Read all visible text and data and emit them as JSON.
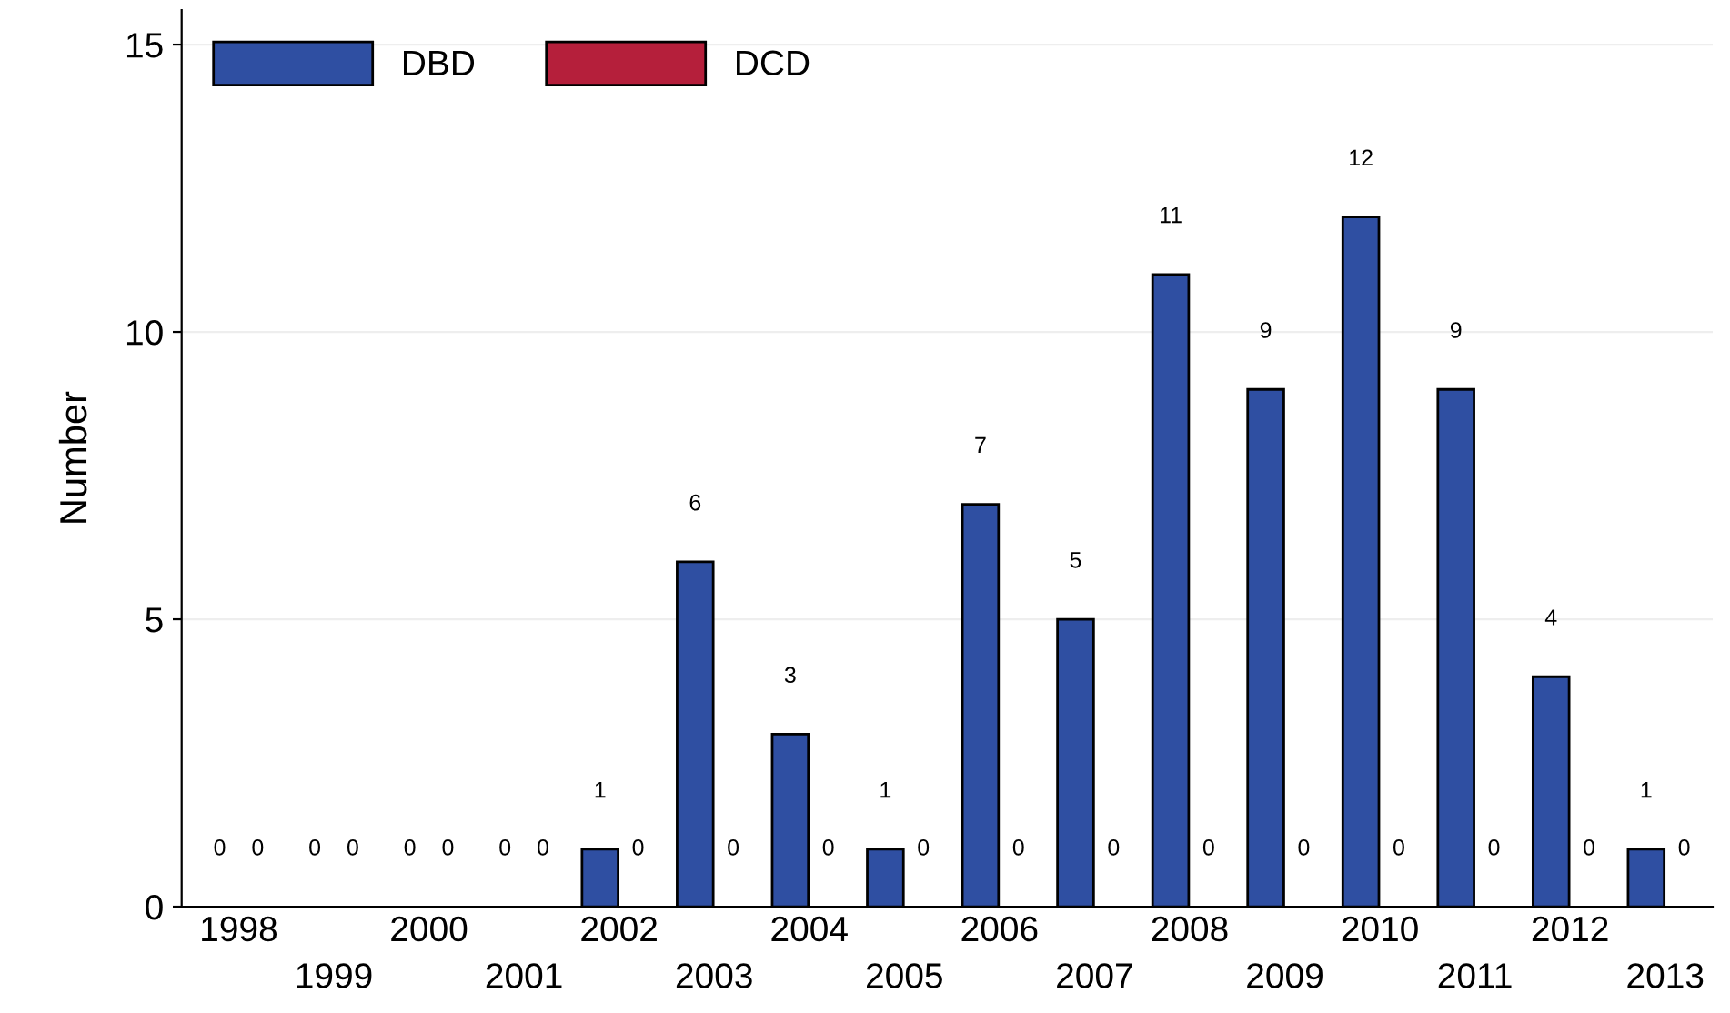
{
  "chart_data": {
    "type": "bar",
    "ylabel": "Number",
    "categories": [
      "1998",
      "1999",
      "2000",
      "2001",
      "2002",
      "2003",
      "2004",
      "2005",
      "2006",
      "2007",
      "2008",
      "2009",
      "2010",
      "2011",
      "2012",
      "2013"
    ],
    "series": [
      {
        "name": "DBD",
        "color": "#2f4fa2",
        "values": [
          0,
          0,
          0,
          0,
          1,
          6,
          3,
          1,
          7,
          5,
          11,
          9,
          12,
          9,
          4,
          1
        ]
      },
      {
        "name": "DCD",
        "color": "#b51f3b",
        "values": [
          0,
          0,
          0,
          0,
          0,
          0,
          0,
          0,
          0,
          0,
          0,
          0,
          0,
          0,
          0,
          0
        ]
      }
    ],
    "ylim": [
      0,
      15.6
    ],
    "yticks": [
      0,
      5,
      10,
      15
    ],
    "grid": "y",
    "legend": "top left",
    "data_labels": true
  }
}
